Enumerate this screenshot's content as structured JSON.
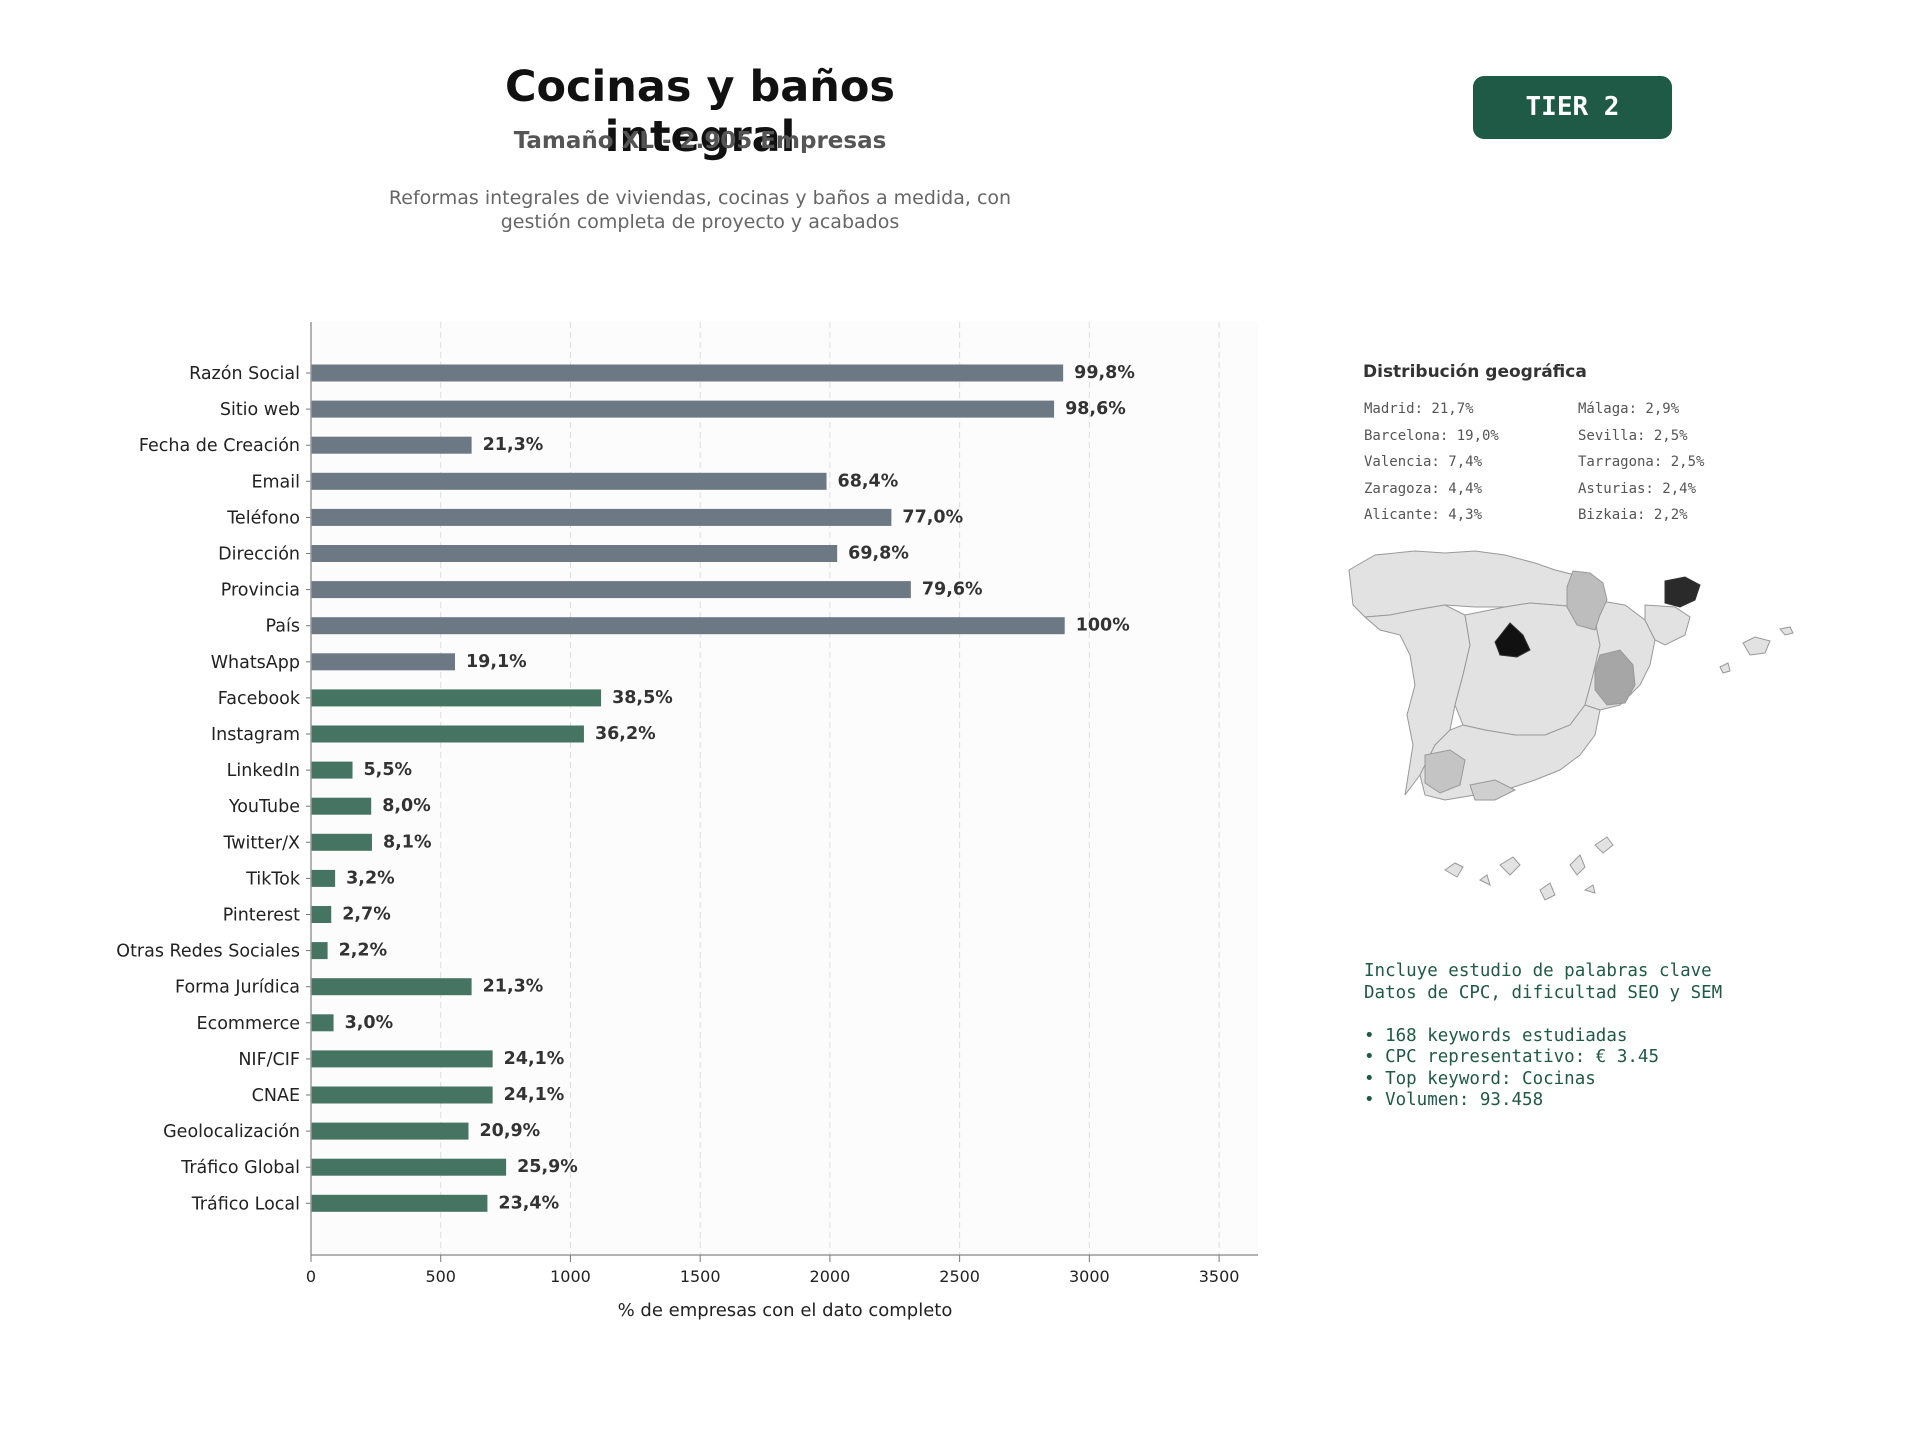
{
  "header": {
    "title": "Cocinas y baños integral",
    "subtitle": "Tamaño XL - 2.905 Empresas",
    "description_line1": "Reformas integrales de viviendas, cocinas y baños a medida, con",
    "description_line2": "gestión completa de proyecto y acabados",
    "tier_label": "TIER 2"
  },
  "colors": {
    "gray_bar": "#6c7884",
    "green_bar": "#467463",
    "tier_bg": "#1e5a46",
    "keyword_text": "#1e5a46"
  },
  "chart_data": {
    "type": "bar",
    "orientation": "horizontal",
    "xlabel": "% de empresas con el dato completo",
    "xlim": [
      0,
      3650
    ],
    "xticks": [
      0,
      500,
      1000,
      1500,
      2000,
      2500,
      3000,
      3500
    ],
    "grid": "vertical-dashed",
    "categories": [
      "Razón Social",
      "Sitio web",
      "Fecha de Creación",
      "Email",
      "Teléfono",
      "Dirección",
      "Provincia",
      "País",
      "WhatsApp",
      "Facebook",
      "Instagram",
      "LinkedIn",
      "YouTube",
      "Twitter/X",
      "TikTok",
      "Pinterest",
      "Otras Redes Sociales",
      "Forma Jurídica",
      "Ecommerce",
      "NIF/CIF",
      "CNAE",
      "Geolocalización",
      "Tráfico Global",
      "Tráfico Local"
    ],
    "values": [
      2899,
      2864,
      619,
      1987,
      2237,
      2028,
      2312,
      2905,
      555,
      1118,
      1052,
      160,
      232,
      235,
      93,
      78,
      64,
      619,
      87,
      700,
      700,
      607,
      752,
      680
    ],
    "labels": [
      "99,8%",
      "98,6%",
      "21,3%",
      "68,4%",
      "77,0%",
      "69,8%",
      "79,6%",
      "100%",
      "19,1%",
      "38,5%",
      "36,2%",
      "5,5%",
      "8,0%",
      "8,1%",
      "3,2%",
      "2,7%",
      "2,2%",
      "21,3%",
      "3,0%",
      "24,1%",
      "24,1%",
      "20,9%",
      "25,9%",
      "23,4%"
    ],
    "bar_groups": [
      "gray",
      "gray",
      "gray",
      "gray",
      "gray",
      "gray",
      "gray",
      "gray",
      "gray",
      "green",
      "green",
      "green",
      "green",
      "green",
      "green",
      "green",
      "green",
      "green",
      "green",
      "green",
      "green",
      "green",
      "green",
      "green"
    ]
  },
  "geo": {
    "title": "Distribución geográfica",
    "col1": [
      "Madrid: 21,7%",
      "Barcelona: 19,0%",
      "Valencia: 7,4%",
      "Zaragoza: 4,4%",
      "Alicante: 4,3%"
    ],
    "col2": [
      "Málaga: 2,9%",
      "Sevilla: 2,5%",
      "Tarragona: 2,5%",
      "Asturias: 2,4%",
      "Bizkaia: 2,2%"
    ]
  },
  "keywords": {
    "line1": "Incluye estudio de palabras clave",
    "line2": "Datos de CPC, dificultad SEO y SEM",
    "bullets": [
      "• 168 keywords estudiadas",
      "• CPC representativo: € 3.45",
      "• Top keyword: Cocinas",
      "• Volumen: 93.458"
    ]
  }
}
